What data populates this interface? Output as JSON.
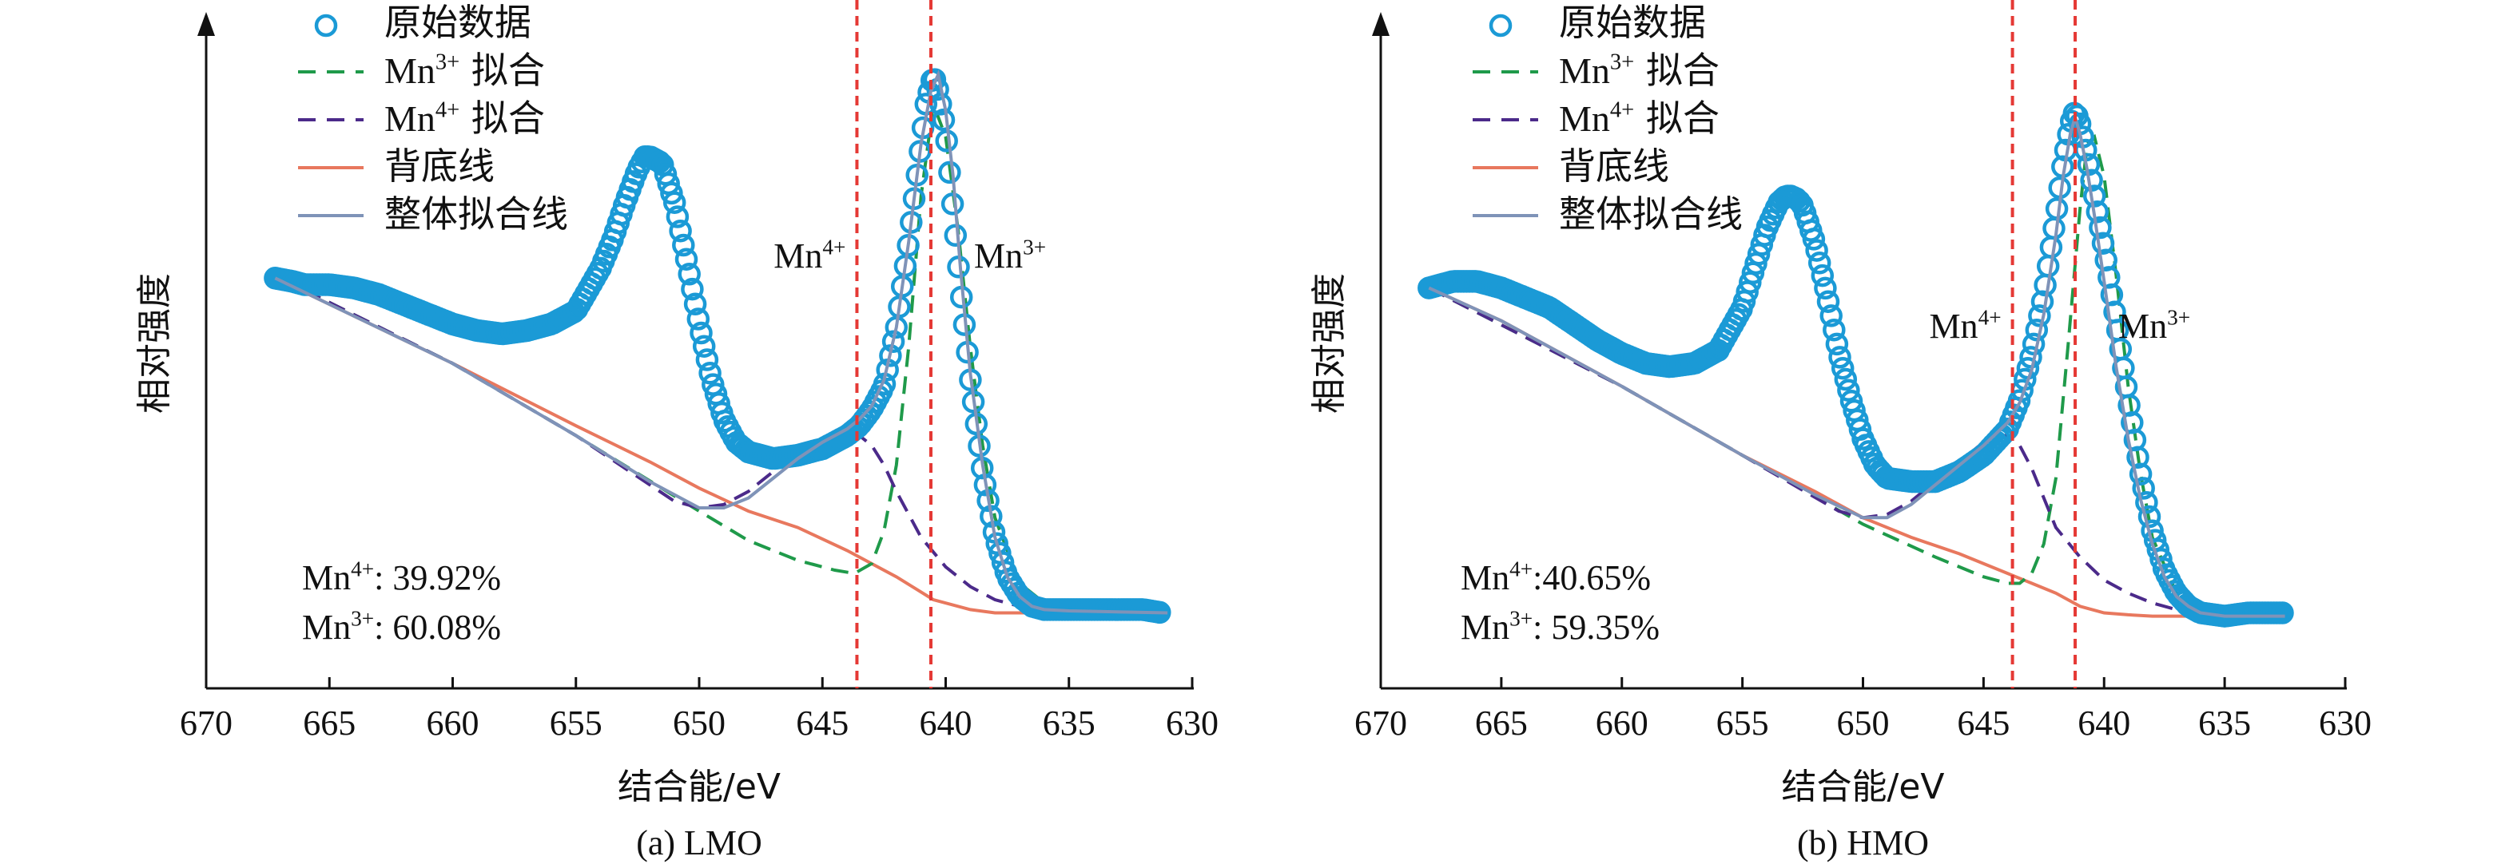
{
  "legend_labels": [
    "原始数据",
    "Mn",
    "拟合",
    "Mn",
    "拟合",
    "背底线",
    "整体拟合线"
  ],
  "colors": {
    "raw": "#1b9ad6",
    "mn3fit": "#1f9a4a",
    "mn4fit": "#4b2a8a",
    "background": "#e8785e",
    "envelope": "#7f93b8",
    "refline": "#e53935"
  },
  "chart_data": [
    {
      "type": "scatter",
      "caption": "(a) LMO",
      "xlabel": "结合能/eV",
      "ylabel": "相对强度",
      "xlim": [
        670,
        630
      ],
      "x_ticks": [
        670,
        665,
        660,
        655,
        650,
        645,
        640,
        635,
        630
      ],
      "ylim": [
        0,
        100
      ],
      "y_ticks_shown": false,
      "legend": {
        "position": "top-left",
        "entries": [
          {
            "label": "原始数据",
            "style": "circle-marker",
            "color": "#1b9ad6"
          },
          {
            "base": "Mn",
            "sup": "3+",
            "text": "拟合",
            "style": "dashed",
            "color": "#1f9a4a"
          },
          {
            "base": "Mn",
            "sup": "4+",
            "text": "拟合",
            "style": "dashed",
            "color": "#4b2a8a"
          },
          {
            "label": "背底线",
            "style": "solid",
            "color": "#e8785e"
          },
          {
            "label": "整体拟合线",
            "style": "solid",
            "color": "#7f93b8"
          }
        ]
      },
      "ref_lines": [
        643.6,
        640.6
      ],
      "peak_labels": [
        {
          "base": "Mn",
          "sup": "4+",
          "x": 643.6
        },
        {
          "base": "Mn",
          "sup": "3+",
          "x": 640.6
        }
      ],
      "stats": [
        {
          "base": "Mn",
          "sup": "4+",
          "value": ": 39.92%"
        },
        {
          "base": "Mn",
          "sup": "3+",
          "value": ": 60.08%"
        }
      ],
      "series": [
        {
          "kind": "raw",
          "x": [
            667.2,
            666.5,
            666.0,
            665.0,
            664.0,
            663.0,
            662.0,
            661.0,
            660.0,
            659.0,
            658.0,
            657.0,
            656.0,
            655.0,
            654.0,
            653.5,
            653.0,
            652.5,
            652.2,
            652.0,
            651.5,
            651.0,
            650.5,
            650.0,
            649.5,
            649.0,
            648.5,
            648.0,
            647.0,
            646.0,
            645.0,
            644.5,
            644.0,
            643.5,
            643.0,
            642.5,
            642.0,
            641.5,
            641.0,
            640.8,
            640.5,
            640.3,
            640.0,
            639.7,
            639.4,
            639.0,
            638.5,
            638.0,
            637.5,
            637.0,
            636.5,
            636.0,
            635.5,
            635.0,
            634.0,
            633.0,
            632.0,
            631.2
          ],
          "y": [
            62.5,
            62.0,
            61.5,
            61.5,
            61.0,
            60.0,
            58.5,
            57.0,
            55.5,
            54.5,
            54.0,
            54.5,
            55.5,
            57.5,
            64.0,
            68.5,
            74.0,
            79.0,
            81.0,
            81.0,
            80.0,
            74.0,
            65.0,
            55.5,
            47.0,
            41.0,
            37.5,
            36.0,
            35.0,
            35.5,
            36.5,
            37.5,
            38.5,
            40.0,
            42.5,
            46.0,
            55.0,
            68.0,
            83.0,
            89.0,
            93.5,
            91.0,
            85.0,
            73.0,
            61.0,
            47.0,
            33.0,
            23.0,
            17.0,
            14.0,
            12.5,
            12.0,
            12.0,
            12.0,
            12.0,
            12.0,
            12.0,
            11.5
          ]
        },
        {
          "kind": "mn3",
          "x": [
            667.0,
            660.0,
            655.0,
            650.0,
            648.0,
            646.0,
            644.5,
            643.7,
            643.0,
            642.5,
            642.0,
            641.5,
            641.0,
            640.5,
            640.0,
            639.5,
            639.0,
            638.5,
            638.0,
            637.0,
            636.0,
            635.0,
            632.0,
            631.0
          ],
          "y": [
            62.5,
            49.5,
            38.5,
            27.0,
            22.5,
            19.5,
            18.0,
            17.5,
            19.0,
            24.0,
            34.0,
            52.0,
            75.0,
            89.0,
            84.0,
            70.0,
            52.0,
            37.0,
            26.0,
            16.0,
            13.0,
            12.0,
            11.5,
            11.5
          ]
        },
        {
          "kind": "mn4",
          "x": [
            667.0,
            660.0,
            655.0,
            651.0,
            650.0,
            649.0,
            648.0,
            647.0,
            646.0,
            645.0,
            644.5,
            644.0,
            643.5,
            643.0,
            642.5,
            642.0,
            641.0,
            640.0,
            639.0,
            638.0,
            637.0,
            636.0,
            635.0,
            631.0
          ],
          "y": [
            62.5,
            49.5,
            38.5,
            28.5,
            27.5,
            28.0,
            30.0,
            33.0,
            36.0,
            38.0,
            38.5,
            38.5,
            38.5,
            37.0,
            34.0,
            30.0,
            23.0,
            18.5,
            15.5,
            13.5,
            12.5,
            12.0,
            11.8,
            11.5
          ]
        },
        {
          "kind": "background",
          "x": [
            667.2,
            665.0,
            660.0,
            655.0,
            652.0,
            650.0,
            648.0,
            646.0,
            644.0,
            642.0,
            640.5,
            639.0,
            638.0,
            637.0,
            635.0,
            631.0
          ],
          "y": [
            62.5,
            58.5,
            49.5,
            40.0,
            34.5,
            30.5,
            27.0,
            24.5,
            21.0,
            17.0,
            13.5,
            12.0,
            11.5,
            11.5,
            11.5,
            11.5
          ]
        },
        {
          "kind": "envelope",
          "x": [
            667.2,
            665.0,
            660.0,
            655.0,
            652.0,
            650.0,
            649.0,
            648.0,
            647.0,
            646.0,
            645.0,
            644.0,
            643.5,
            643.0,
            642.5,
            642.0,
            641.5,
            641.0,
            640.6,
            640.3,
            640.0,
            639.7,
            639.4,
            639.0,
            638.5,
            638.0,
            637.5,
            637.0,
            636.5,
            636.0,
            635.0,
            631.0
          ],
          "y": [
            62.5,
            58.5,
            49.5,
            38.5,
            31.5,
            27.5,
            27.5,
            29.0,
            32.0,
            35.0,
            37.5,
            39.5,
            41.0,
            43.0,
            47.0,
            55.0,
            68.0,
            83.0,
            91.0,
            93.5,
            88.0,
            78.0,
            64.0,
            48.0,
            34.0,
            23.0,
            17.0,
            14.0,
            12.5,
            12.0,
            11.8,
            11.5
          ]
        }
      ]
    },
    {
      "type": "scatter",
      "caption": "(b) HMO",
      "xlabel": "结合能/eV",
      "ylabel": "相对强度",
      "xlim": [
        670,
        630
      ],
      "x_ticks": [
        670,
        665,
        660,
        655,
        650,
        645,
        640,
        635,
        630
      ],
      "ylim": [
        0,
        100
      ],
      "y_ticks_shown": false,
      "legend": {
        "position": "top-left",
        "entries": [
          {
            "label": "原始数据",
            "style": "circle-marker",
            "color": "#1b9ad6"
          },
          {
            "base": "Mn",
            "sup": "3+",
            "text": "拟合",
            "style": "dashed",
            "color": "#1f9a4a"
          },
          {
            "base": "Mn",
            "sup": "4+",
            "text": "拟合",
            "style": "dashed",
            "color": "#4b2a8a"
          },
          {
            "label": "背底线",
            "style": "solid",
            "color": "#e8785e"
          },
          {
            "label": "整体拟合线",
            "style": "solid",
            "color": "#7f93b8"
          }
        ]
      },
      "ref_lines": [
        643.8,
        641.2
      ],
      "peak_labels": [
        {
          "base": "Mn",
          "sup": "4+",
          "x": 643.8
        },
        {
          "base": "Mn",
          "sup": "3+",
          "x": 641.2
        }
      ],
      "stats": [
        {
          "base": "Mn",
          "sup": "4+",
          "value": ":40.65%"
        },
        {
          "base": "Mn",
          "sup": "3+",
          "value": ": 59.35%"
        }
      ],
      "series": [
        {
          "kind": "raw",
          "x": [
            668.0,
            667.5,
            667.0,
            666.0,
            665.0,
            664.0,
            663.0,
            662.0,
            661.0,
            660.0,
            659.0,
            658.0,
            657.0,
            656.0,
            655.0,
            654.5,
            654.0,
            653.5,
            653.2,
            653.0,
            652.7,
            652.5,
            652.0,
            651.5,
            651.0,
            650.5,
            650.0,
            649.5,
            649.0,
            648.0,
            647.0,
            646.0,
            645.0,
            644.0,
            643.5,
            643.0,
            642.5,
            642.0,
            641.7,
            641.4,
            641.2,
            641.0,
            640.7,
            640.4,
            640.0,
            639.5,
            639.0,
            638.5,
            638.0,
            637.5,
            637.0,
            636.5,
            636.0,
            635.0,
            634.0,
            633.0,
            632.5
          ],
          "y": [
            61.0,
            61.5,
            62.0,
            62.0,
            61.0,
            59.5,
            58.0,
            55.5,
            53.0,
            51.0,
            49.5,
            49.0,
            49.5,
            51.5,
            58.0,
            64.0,
            70.0,
            74.0,
            75.0,
            75.0,
            74.5,
            73.5,
            68.0,
            60.0,
            51.0,
            44.0,
            38.0,
            34.0,
            32.0,
            31.5,
            31.5,
            33.0,
            35.5,
            39.5,
            44.0,
            51.0,
            60.0,
            72.0,
            80.0,
            86.0,
            88.0,
            86.0,
            81.0,
            75.0,
            67.0,
            56.0,
            44.0,
            33.0,
            24.0,
            18.0,
            14.5,
            12.5,
            11.5,
            11.0,
            11.5,
            11.5,
            11.5
          ]
        },
        {
          "kind": "mn3",
          "x": [
            668.0,
            660.0,
            655.0,
            650.0,
            647.0,
            645.0,
            644.0,
            643.5,
            643.0,
            642.5,
            642.0,
            641.5,
            641.0,
            640.7,
            640.4,
            640.0,
            639.5,
            639.0,
            638.5,
            638.0,
            637.0,
            636.0,
            635.0,
            632.5
          ],
          "y": [
            61.0,
            46.0,
            35.5,
            25.0,
            20.0,
            17.0,
            16.0,
            16.0,
            17.5,
            22.0,
            32.0,
            52.0,
            73.0,
            83.0,
            84.0,
            78.0,
            63.0,
            46.0,
            33.0,
            23.0,
            14.5,
            12.0,
            11.5,
            11.0
          ]
        },
        {
          "kind": "mn4",
          "x": [
            668.0,
            660.0,
            655.0,
            651.0,
            650.0,
            649.0,
            648.0,
            647.0,
            646.0,
            645.0,
            644.5,
            644.0,
            643.5,
            643.0,
            642.5,
            642.0,
            641.0,
            640.0,
            639.0,
            638.0,
            637.0,
            636.0,
            635.0,
            632.5
          ],
          "y": [
            61.0,
            46.0,
            35.5,
            27.0,
            26.0,
            26.5,
            28.5,
            31.5,
            34.5,
            37.5,
            38.5,
            38.5,
            37.0,
            33.5,
            29.0,
            24.5,
            20.0,
            16.5,
            14.5,
            13.0,
            12.0,
            11.5,
            11.2,
            11.0
          ]
        },
        {
          "kind": "background",
          "x": [
            668.0,
            665.0,
            660.0,
            655.0,
            652.0,
            650.0,
            648.0,
            646.0,
            644.0,
            642.0,
            641.0,
            640.0,
            639.0,
            638.0,
            637.0,
            635.0,
            632.5
          ],
          "y": [
            61.0,
            56.0,
            46.0,
            35.5,
            30.0,
            26.0,
            23.0,
            20.5,
            17.5,
            14.5,
            12.5,
            11.5,
            11.2,
            11.0,
            11.0,
            11.0,
            11.0
          ]
        },
        {
          "kind": "envelope",
          "x": [
            668.0,
            665.0,
            660.0,
            655.0,
            652.0,
            650.0,
            649.0,
            648.0,
            647.0,
            646.0,
            645.0,
            644.0,
            643.5,
            643.0,
            642.5,
            642.0,
            641.7,
            641.4,
            641.2,
            641.0,
            640.7,
            640.4,
            640.0,
            639.5,
            639.0,
            638.5,
            638.0,
            637.5,
            637.0,
            636.5,
            636.0,
            635.0,
            632.5
          ],
          "y": [
            61.0,
            56.0,
            46.0,
            35.5,
            29.5,
            26.0,
            26.0,
            28.0,
            31.0,
            34.0,
            37.0,
            40.5,
            43.5,
            48.5,
            57.0,
            69.0,
            78.0,
            84.5,
            87.0,
            84.5,
            79.0,
            72.0,
            62.0,
            49.0,
            38.0,
            29.0,
            22.0,
            17.0,
            14.0,
            12.5,
            11.5,
            11.0,
            11.0
          ]
        }
      ]
    }
  ]
}
